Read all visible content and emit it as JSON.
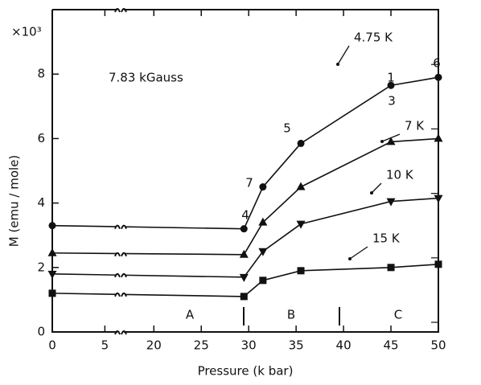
{
  "chart_data": {
    "type": "line",
    "x_label": "Pressure (k bar)",
    "y_label": "M (emu / mole)",
    "y_scale_label": "×10³",
    "field_label": "7.83 kGauss",
    "x": [
      0,
      29.5,
      31.5,
      35.5,
      45,
      50
    ],
    "xlim": [
      0,
      50
    ],
    "xticks": [
      0,
      5,
      20,
      25,
      30,
      35,
      40,
      45,
      50
    ],
    "xbreak": [
      6.5,
      16.5
    ],
    "ylim": [
      0,
      10
    ],
    "yticks": [
      0,
      2,
      4,
      6,
      8
    ],
    "series": [
      {
        "name": "4.75 K",
        "color": "#111111",
        "marker": "circle",
        "values": [
          3.3,
          3.2,
          4.5,
          5.85,
          7.65,
          7.9
        ]
      },
      {
        "name": "7 K",
        "color": "#111111",
        "marker": "triangle",
        "values": [
          2.45,
          2.4,
          3.4,
          4.5,
          5.9,
          6.0
        ]
      },
      {
        "name": "10 K",
        "color": "#111111",
        "marker": "triangle-down",
        "values": [
          1.8,
          1.7,
          2.5,
          3.35,
          4.05,
          4.15
        ]
      },
      {
        "name": "15 K",
        "color": "#111111",
        "marker": "square",
        "values": [
          1.2,
          1.1,
          1.6,
          1.9,
          2.0,
          2.1
        ]
      }
    ],
    "point_labels": [
      "4",
      "7",
      "5",
      "1",
      "3",
      "6"
    ],
    "regions": [
      "A",
      "B",
      "C"
    ]
  }
}
